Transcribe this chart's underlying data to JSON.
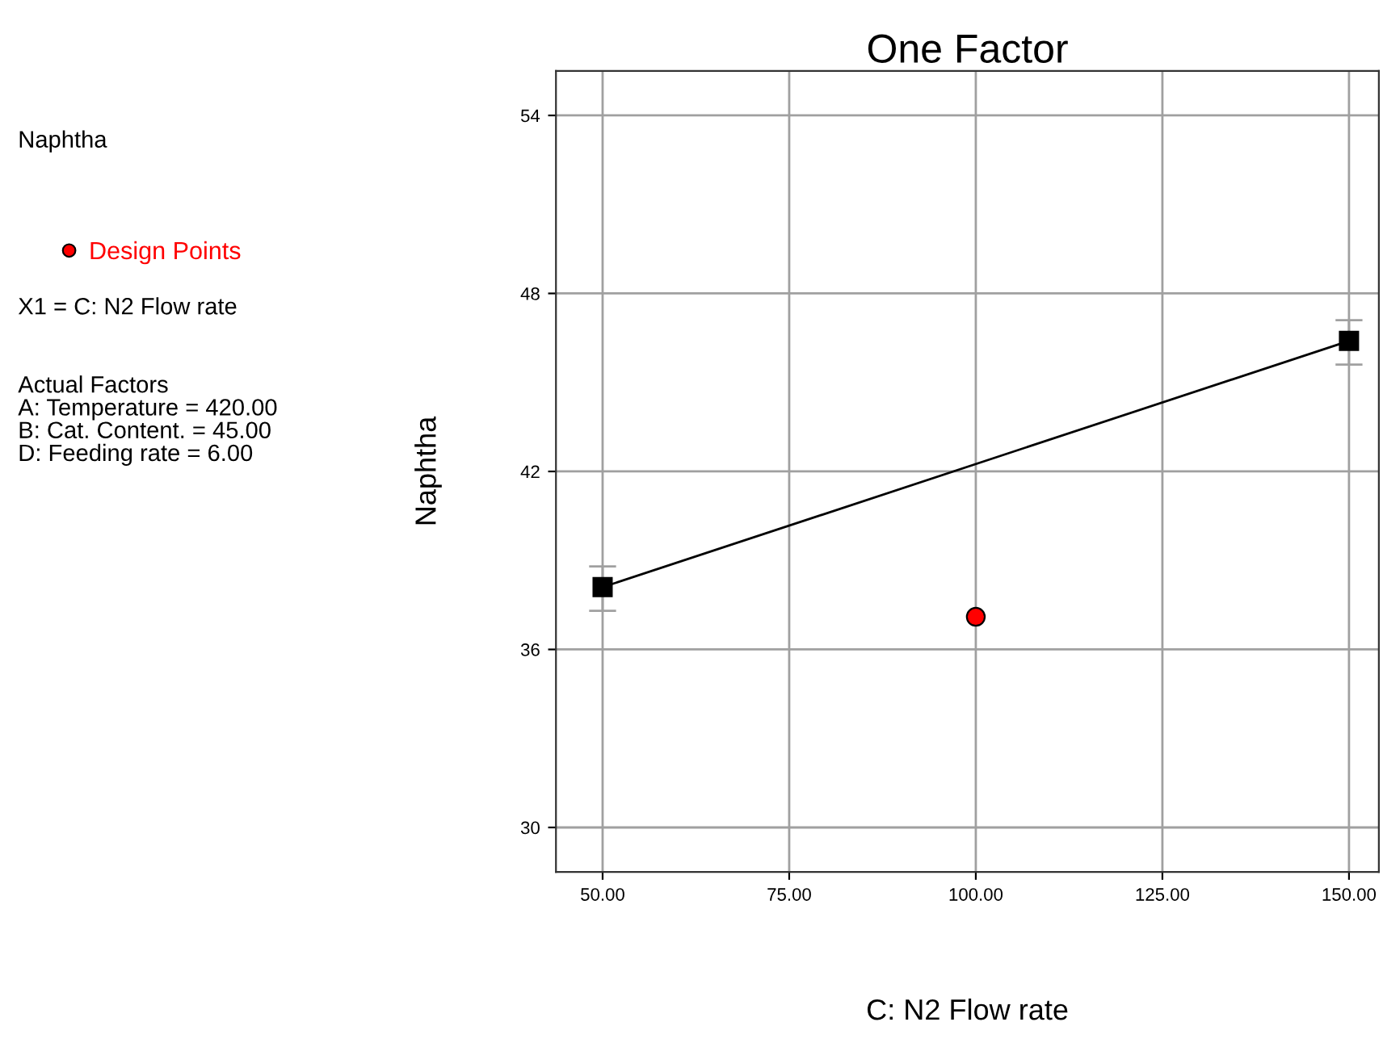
{
  "chart_data": {
    "type": "line",
    "title": "One Factor",
    "xlabel": "C: N2 Flow rate",
    "ylabel": "Naphtha",
    "annotations": [
      "Naphtha",
      "X1 = C: N2 Flow rate",
      "Actual Factors\nA: Temperature = 420.00\nB: Cat. Content. = 45.00\nD: Feeding rate = 6.00"
    ],
    "series": [
      {
        "color": "#000000",
        "marker": "square",
        "x": [
          50,
          150
        ],
        "values": [
          38.1,
          46.4
        ],
        "errors": [
          [
            37.3,
            38.8
          ],
          [
            45.6,
            47.1
          ]
        ]
      },
      {
        "type": "scatter",
        "name": "Design Points",
        "color": "#ff0000",
        "marker": "circle",
        "x": [
          100
        ],
        "values": [
          37.1
        ]
      }
    ],
    "xlim": [
      43.75,
      154
    ],
    "ylim": [
      28.5,
      55.5
    ],
    "xticks": [
      {
        "value": 50,
        "label": "50.00"
      },
      {
        "value": 75,
        "label": "75.00"
      },
      {
        "value": 100,
        "label": "100.00"
      },
      {
        "value": 125,
        "label": "125.00"
      },
      {
        "value": 150,
        "label": "150.00"
      }
    ],
    "yticks": [
      30,
      36,
      42,
      48,
      54
    ],
    "grid": true,
    "legend": "top left"
  }
}
